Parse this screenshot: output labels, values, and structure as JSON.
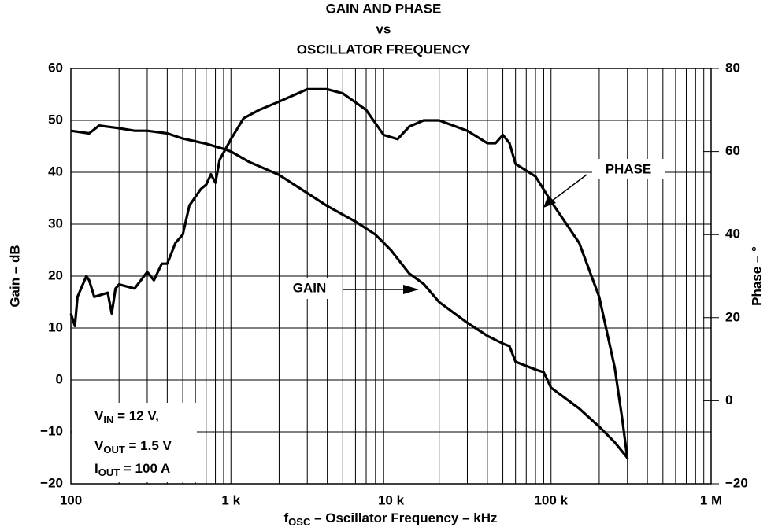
{
  "chart_data": {
    "type": "line",
    "title": [
      "GAIN AND PHASE",
      "vs",
      "OSCILLATOR FREQUENCY"
    ],
    "x_label": {
      "base": "f",
      "sub": "OSC",
      "rest": " – Oscillator Frequency – kHz"
    },
    "y_label": "Gain – dB",
    "y2_label": "Phase – °",
    "log_x": true,
    "grid": true,
    "xlim": [
      100,
      1000000
    ],
    "xticks": [
      {
        "value": 100,
        "label": "100"
      },
      {
        "value": 1000,
        "label": "1 k"
      },
      {
        "value": 10000,
        "label": "10 k"
      },
      {
        "value": 100000,
        "label": "100 k"
      },
      {
        "value": 1000000,
        "label": "1 M"
      }
    ],
    "xminor": [
      200,
      300,
      400,
      500,
      600,
      700,
      800,
      900,
      2000,
      3000,
      4000,
      5000,
      6000,
      7000,
      8000,
      9000,
      20000,
      30000,
      40000,
      50000,
      60000,
      70000,
      80000,
      90000,
      200000,
      300000,
      400000,
      500000,
      600000,
      700000,
      800000,
      900000
    ],
    "ylim": [
      -20,
      60
    ],
    "yticks": [
      {
        "value": -20,
        "label": "−20"
      },
      {
        "value": -10,
        "label": "−10"
      },
      0,
      10,
      20,
      30,
      40,
      50,
      60
    ],
    "y2lim": [
      -20,
      80
    ],
    "y2ticks": [
      {
        "value": -20,
        "label": "−20"
      },
      0,
      20,
      40,
      60,
      80
    ],
    "series": [
      {
        "name": "GAIN",
        "color": "#000000",
        "x": [
          100,
          130,
          150,
          200,
          250,
          300,
          400,
          500,
          700,
          900,
          1000,
          1300,
          2000,
          3000,
          4000,
          6000,
          8000,
          10000,
          13000,
          16000,
          20000,
          30000,
          40000,
          50000,
          55000,
          60000,
          80000,
          90000,
          100000,
          150000,
          200000,
          250000,
          300000
        ],
        "values": [
          48,
          47.5,
          49,
          48.5,
          48,
          48,
          47.5,
          46.5,
          45.5,
          44.5,
          44,
          42,
          39.5,
          36,
          33.5,
          30.5,
          28,
          25,
          20.5,
          18.5,
          15,
          11,
          8.5,
          7,
          6.5,
          3.5,
          2,
          1.5,
          -1.5,
          -5.5,
          -9,
          -12,
          -15
        ]
      },
      {
        "name": "PHASE",
        "color": "#000000",
        "axis": "y2",
        "x": [
          100,
          106,
          110,
          125,
          130,
          140,
          170,
          180,
          190,
          200,
          250,
          300,
          330,
          370,
          400,
          450,
          500,
          550,
          650,
          700,
          750,
          800,
          850,
          1000,
          1200,
          1500,
          2000,
          3000,
          4000,
          5000,
          7000,
          9000,
          11000,
          13000,
          16000,
          20000,
          30000,
          40000,
          45000,
          50000,
          55000,
          60000,
          80000,
          100000,
          150000,
          200000,
          250000,
          280000,
          300000
        ],
        "values": [
          21,
          18,
          25,
          30,
          29,
          25,
          26,
          21,
          27,
          28,
          27,
          31,
          29,
          33,
          33,
          38,
          40,
          47,
          51,
          52,
          54.5,
          52.5,
          58,
          63,
          68,
          70,
          72,
          75,
          75,
          74,
          70,
          64,
          63,
          66,
          67.5,
          67.5,
          65,
          62,
          62,
          64,
          62,
          57,
          54,
          48,
          38,
          25,
          8,
          -5,
          -14
        ]
      }
    ],
    "conditions": [
      {
        "base": "V",
        "sub": "IN",
        "rest": " = 12 V,"
      },
      {
        "base": "V",
        "sub": "OUT",
        "rest": " = 1.5 V"
      },
      {
        "base": "I",
        "sub": "OUT",
        "rest": " = 100 A"
      }
    ]
  }
}
